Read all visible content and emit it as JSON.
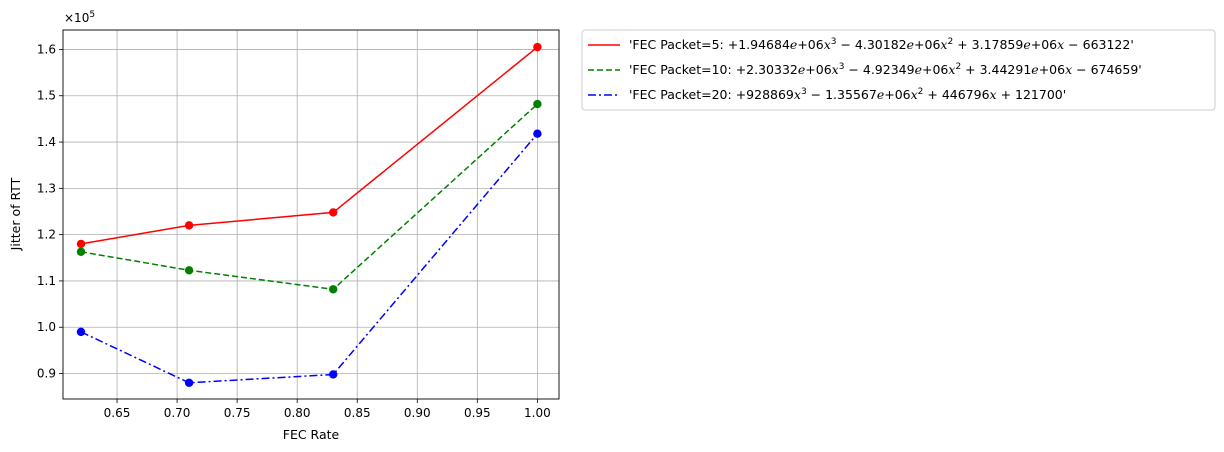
{
  "chart_data": {
    "type": "line",
    "xlabel": "FEC Rate",
    "ylabel": "Jitter of RTT",
    "y_multiplier_label": "×10",
    "y_multiplier_exponent": "5",
    "xlim": [
      0.605,
      1.018
    ],
    "ylim": [
      0.845,
      1.642
    ],
    "xticks": [
      0.65,
      0.7,
      0.75,
      0.8,
      0.85,
      0.9,
      0.95,
      1.0
    ],
    "xtick_labels": [
      "0.65",
      "0.70",
      "0.75",
      "0.80",
      "0.85",
      "0.90",
      "0.95",
      "1.00"
    ],
    "yticks": [
      0.9,
      1.0,
      1.1,
      1.2,
      1.3,
      1.4,
      1.5,
      1.6
    ],
    "ytick_labels": [
      "0.9",
      "1.0",
      "1.1",
      "1.2",
      "1.3",
      "1.4",
      "1.5",
      "1.6"
    ],
    "grid": true,
    "legend_position": "outside-right-top",
    "x": [
      0.62,
      0.71,
      0.83,
      1.0
    ],
    "series": [
      {
        "name": "'FEC Packet=5: +1.94684e+06x^3 − 4.30182e+06x^2 + 3.17859e+06x − 663122'",
        "color": "#ff0000",
        "dash": "solid",
        "values": [
          1.18,
          1.22,
          1.248,
          1.605
        ]
      },
      {
        "name": "'FEC Packet=10: +2.30332e+06x^3 − 4.92349e+06x^2 + 3.44291e+06x − 674659'",
        "color": "#008000",
        "dash": "dashed",
        "values": [
          1.163,
          1.123,
          1.082,
          1.482
        ]
      },
      {
        "name": "'FEC Packet=20: +928869x^3 − 1.35567e+06x^2 + 446796x + 121700'",
        "color": "#0000ff",
        "dash": "dashdot",
        "values": [
          0.99,
          0.88,
          0.898,
          1.418
        ]
      }
    ]
  },
  "legend": [
    {
      "color": "#ff0000",
      "dash": "solid",
      "prefix": "'FEC Packet=5: ",
      "terms": [
        {
          "coef": "+1.94684",
          "e": "+06",
          "pow": "3"
        },
        {
          "coef": " − 4.30182",
          "e": "+06",
          "pow": "2"
        },
        {
          "coef": " + 3.17859",
          "e": "+06",
          "pow": "1"
        },
        {
          "coef": " − 663122",
          "e": "",
          "pow": "0"
        }
      ]
    },
    {
      "color": "#008000",
      "dash": "dashed",
      "prefix": "'FEC Packet=10: ",
      "terms": [
        {
          "coef": "+2.30332",
          "e": "+06",
          "pow": "3"
        },
        {
          "coef": " − 4.92349",
          "e": "+06",
          "pow": "2"
        },
        {
          "coef": " + 3.44291",
          "e": "+06",
          "pow": "1"
        },
        {
          "coef": " − 674659",
          "e": "",
          "pow": "0"
        }
      ]
    },
    {
      "color": "#0000ff",
      "dash": "dashdot",
      "prefix": "'FEC Packet=20: ",
      "terms": [
        {
          "coef": "+928869",
          "e": "",
          "pow": "3"
        },
        {
          "coef": " − 1.35567",
          "e": "+06",
          "pow": "2"
        },
        {
          "coef": " + 446796",
          "e": "",
          "pow": "1"
        },
        {
          "coef": " + 121700",
          "e": "",
          "pow": "0"
        }
      ]
    }
  ]
}
